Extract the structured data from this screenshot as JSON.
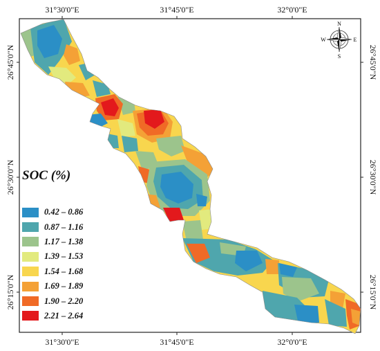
{
  "map": {
    "axes": {
      "top_ticks": [
        "31°30'0\"E",
        "31°45'0\"E",
        "32°0'0\"E"
      ],
      "bottom_ticks": [
        "31°30'0\"E",
        "31°45'0\"E",
        "32°0'0\"E"
      ],
      "left_ticks": [
        "26°45'0\"N",
        "26°30'0\"N",
        "26°15'0\"N"
      ],
      "right_ticks": [
        "26°45'0\"N",
        "26°30'0\"N",
        "26°15'0\"N"
      ]
    },
    "compass": {
      "north": "N",
      "south": "S",
      "east": "E",
      "west": "W"
    },
    "legend": {
      "title": "SOC (%)",
      "classes": [
        {
          "label": "0.42 – 0.86",
          "color": "#2b8fc6"
        },
        {
          "label": "0.87 – 1.16",
          "color": "#4fa6ad"
        },
        {
          "label": "1.17 – 1.38",
          "color": "#9cc48c"
        },
        {
          "label": "1.39 – 1.53",
          "color": "#e2ea7e"
        },
        {
          "label": "1.54 – 1.68",
          "color": "#f8d64e"
        },
        {
          "label": "1.69 – 1.89",
          "color": "#f4a136"
        },
        {
          "label": "1.90 – 2.20",
          "color": "#f06a26"
        },
        {
          "label": "2.21 – 2.64",
          "color": "#e3191c"
        }
      ]
    }
  }
}
